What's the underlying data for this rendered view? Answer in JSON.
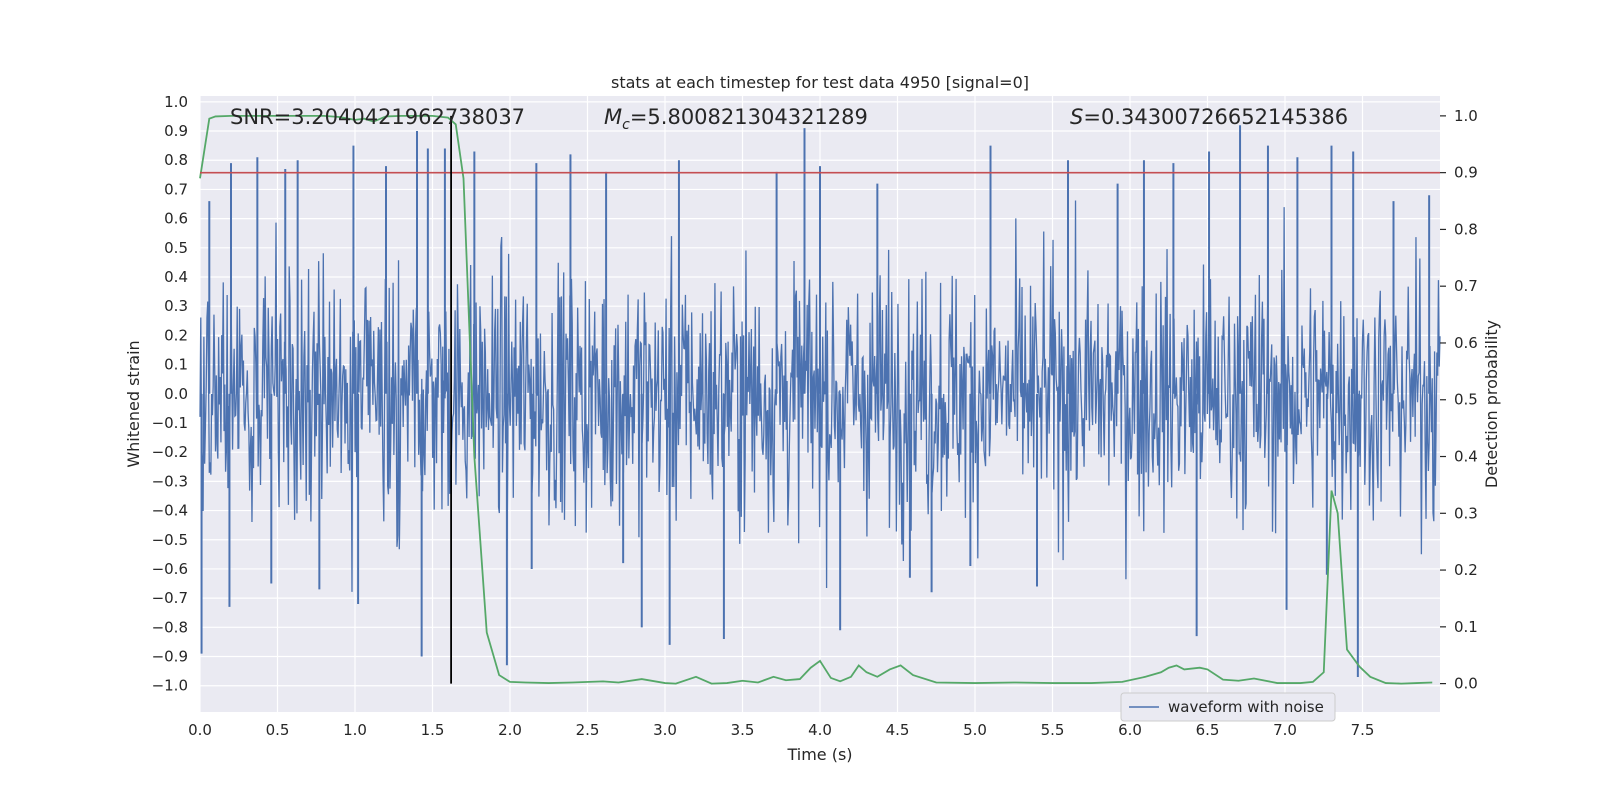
{
  "chart_data": {
    "type": "line",
    "title": "stats at each timestep for test data 4950 [signal=0]",
    "xlabel": "Time (s)",
    "ylabel_left": "Whitened strain",
    "ylabel_right": "Detection probability",
    "xlim": [
      0.0,
      8.0
    ],
    "ylim_left": [
      -1.09,
      1.02
    ],
    "ylim_right": [
      -0.05,
      1.035
    ],
    "x_ticks": [
      0.0,
      0.5,
      1.0,
      1.5,
      2.0,
      2.5,
      3.0,
      3.5,
      4.0,
      4.5,
      5.0,
      5.5,
      6.0,
      6.5,
      7.0,
      7.5
    ],
    "x_tick_labels": [
      "0.0",
      "0.5",
      "1.0",
      "1.5",
      "2.0",
      "2.5",
      "3.0",
      "3.5",
      "4.0",
      "4.5",
      "5.0",
      "5.5",
      "6.0",
      "6.5",
      "7.0",
      "7.5"
    ],
    "y_left_ticks": [
      1.0,
      0.9,
      0.8,
      0.7,
      0.6,
      0.5,
      0.4,
      0.3,
      0.2,
      0.1,
      0.0,
      -0.1,
      -0.2,
      -0.3,
      -0.4,
      -0.5,
      -0.6,
      -0.7,
      -0.8,
      -0.9,
      -1.0
    ],
    "y_left_tick_labels": [
      "1.0",
      "0.9",
      "0.8",
      "0.7",
      "0.6",
      "0.5",
      "0.4",
      "0.3",
      "0.2",
      "0.1",
      "0.0",
      "−0.1",
      "−0.2",
      "−0.3",
      "−0.4",
      "−0.5",
      "−0.6",
      "−0.7",
      "−0.8",
      "−0.9",
      "−1.0"
    ],
    "y_right_ticks": [
      1.0,
      0.9,
      0.8,
      0.7,
      0.6,
      0.5,
      0.4,
      0.3,
      0.2,
      0.1,
      0.0
    ],
    "y_right_tick_labels": [
      "1.0",
      "0.9",
      "0.8",
      "0.7",
      "0.6",
      "0.5",
      "0.4",
      "0.3",
      "0.2",
      "0.1",
      "0.0"
    ],
    "annotations": {
      "snr": "SNR=3.2040421962738037",
      "mc_symbol": "M",
      "mc_subscript": "c",
      "mc_value": "=5.800821304321289",
      "s_symbol": "S",
      "s_value": "=0.34300726652145386"
    },
    "threshold": {
      "value": 0.9,
      "axis": "right",
      "color": "#c44e52"
    },
    "marker_line": {
      "x": 1.62,
      "color": "#000000"
    },
    "legend": {
      "label": "waveform with noise",
      "position": "bottom-right"
    },
    "series": [
      {
        "name": "waveform with noise",
        "axis": "left",
        "color": "#4c72b0",
        "style": "dense noise",
        "envelope_typical": [
          -0.47,
          0.47
        ],
        "peaks": [
          {
            "x": 0.01,
            "y": -0.89
          },
          {
            "x": 0.06,
            "y": 0.66
          },
          {
            "x": 0.19,
            "y": -0.73
          },
          {
            "x": 0.2,
            "y": 0.79
          },
          {
            "x": 0.37,
            "y": 0.81
          },
          {
            "x": 0.46,
            "y": -0.65
          },
          {
            "x": 0.55,
            "y": 0.77
          },
          {
            "x": 0.63,
            "y": 0.8
          },
          {
            "x": 0.77,
            "y": -0.67
          },
          {
            "x": 0.99,
            "y": 0.85
          },
          {
            "x": 1.02,
            "y": -0.72
          },
          {
            "x": 1.2,
            "y": 0.78
          },
          {
            "x": 1.4,
            "y": 0.9
          },
          {
            "x": 1.43,
            "y": -0.9
          },
          {
            "x": 1.47,
            "y": 0.84
          },
          {
            "x": 1.58,
            "y": 0.84
          },
          {
            "x": 1.77,
            "y": 0.83
          },
          {
            "x": 1.98,
            "y": -0.93
          },
          {
            "x": 2.14,
            "y": -0.6
          },
          {
            "x": 2.17,
            "y": 0.79
          },
          {
            "x": 2.39,
            "y": 0.82
          },
          {
            "x": 2.62,
            "y": 0.76
          },
          {
            "x": 2.73,
            "y": -0.58
          },
          {
            "x": 2.85,
            "y": -0.8
          },
          {
            "x": 3.03,
            "y": -0.86
          },
          {
            "x": 3.09,
            "y": 0.8
          },
          {
            "x": 3.38,
            "y": -0.84
          },
          {
            "x": 3.72,
            "y": 0.76
          },
          {
            "x": 3.9,
            "y": 0.91
          },
          {
            "x": 4.0,
            "y": 0.78
          },
          {
            "x": 4.13,
            "y": -0.81
          },
          {
            "x": 4.37,
            "y": 0.72
          },
          {
            "x": 4.58,
            "y": -0.63
          },
          {
            "x": 4.72,
            "y": -0.68
          },
          {
            "x": 4.97,
            "y": -0.59
          },
          {
            "x": 5.1,
            "y": 0.85
          },
          {
            "x": 5.4,
            "y": -0.66
          },
          {
            "x": 5.6,
            "y": 0.8
          },
          {
            "x": 5.92,
            "y": 0.72
          },
          {
            "x": 6.09,
            "y": 0.8
          },
          {
            "x": 6.28,
            "y": 0.79
          },
          {
            "x": 6.43,
            "y": -0.83
          },
          {
            "x": 6.51,
            "y": 0.83
          },
          {
            "x": 6.71,
            "y": 0.92
          },
          {
            "x": 6.89,
            "y": 0.85
          },
          {
            "x": 7.01,
            "y": -0.74
          },
          {
            "x": 7.08,
            "y": 0.81
          },
          {
            "x": 7.27,
            "y": -0.62
          },
          {
            "x": 7.3,
            "y": 0.85
          },
          {
            "x": 7.44,
            "y": 0.83
          },
          {
            "x": 7.47,
            "y": -0.97
          },
          {
            "x": 7.7,
            "y": 0.66
          },
          {
            "x": 7.93,
            "y": 0.68
          }
        ]
      },
      {
        "name": "detection probability",
        "axis": "right",
        "color": "#55a868",
        "x": [
          0.0,
          0.06,
          0.1,
          0.2,
          0.3,
          0.4,
          0.5,
          0.6,
          0.7,
          0.8,
          0.9,
          1.0,
          1.06,
          1.12,
          1.2,
          1.3,
          1.4,
          1.5,
          1.6,
          1.65,
          1.7,
          1.77,
          1.85,
          1.93,
          2.0,
          2.1,
          2.25,
          2.4,
          2.6,
          2.7,
          2.85,
          3.0,
          3.07,
          3.2,
          3.3,
          3.4,
          3.5,
          3.6,
          3.7,
          3.78,
          3.87,
          3.94,
          4.0,
          4.07,
          4.13,
          4.2,
          4.25,
          4.3,
          4.37,
          4.45,
          4.52,
          4.6,
          4.75,
          5.0,
          5.25,
          5.5,
          5.75,
          5.95,
          6.1,
          6.2,
          6.25,
          6.3,
          6.35,
          6.45,
          6.5,
          6.6,
          6.7,
          6.8,
          6.95,
          7.1,
          7.18,
          7.25,
          7.3,
          7.34,
          7.4,
          7.48,
          7.55,
          7.65,
          7.75,
          7.85,
          7.95
        ],
        "values": [
          0.89,
          0.995,
          0.999,
          1.0,
          1.0,
          1.0,
          1.0,
          1.0,
          1.0,
          1.0,
          0.998,
          0.993,
          0.995,
          0.99,
          0.999,
          1.0,
          1.0,
          1.0,
          0.997,
          0.985,
          0.89,
          0.4,
          0.09,
          0.015,
          0.003,
          0.002,
          0.001,
          0.002,
          0.004,
          0.002,
          0.008,
          0.001,
          0.0,
          0.012,
          0.0,
          0.001,
          0.005,
          0.002,
          0.012,
          0.006,
          0.008,
          0.028,
          0.04,
          0.01,
          0.004,
          0.012,
          0.032,
          0.02,
          0.012,
          0.025,
          0.032,
          0.015,
          0.002,
          0.001,
          0.002,
          0.001,
          0.001,
          0.003,
          0.012,
          0.02,
          0.028,
          0.032,
          0.025,
          0.028,
          0.025,
          0.007,
          0.005,
          0.009,
          0.001,
          0.001,
          0.003,
          0.02,
          0.34,
          0.3,
          0.06,
          0.03,
          0.012,
          0.001,
          0.0,
          0.001,
          0.002
        ]
      }
    ]
  }
}
